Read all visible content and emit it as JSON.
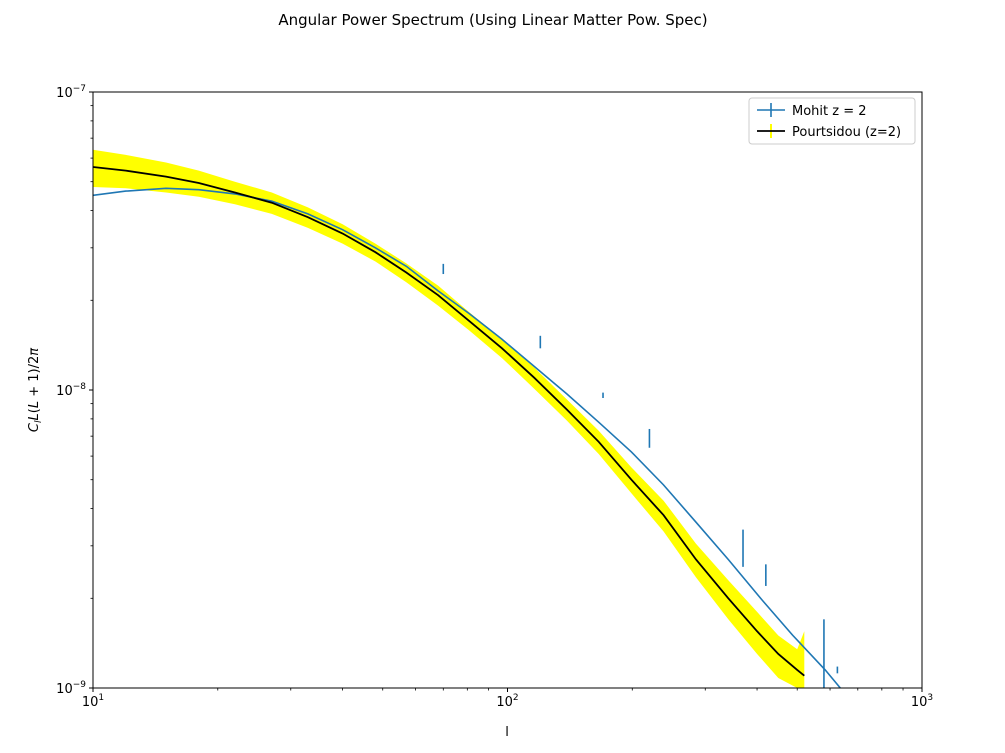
{
  "chart_data": {
    "type": "line",
    "title": "Angular Power Spectrum (Using Linear Matter Pow. Spec)",
    "xlabel": "l",
    "ylabel": "C_l L(L+1)/2π",
    "xscale": "log",
    "yscale": "log",
    "xlim": [
      10,
      1000
    ],
    "ylim": [
      1e-09,
      1e-07
    ],
    "x_ticks": [
      {
        "value": 10,
        "base": "10",
        "exp": "1"
      },
      {
        "value": 100,
        "base": "10",
        "exp": "2"
      },
      {
        "value": 1000,
        "base": "10",
        "exp": "3"
      }
    ],
    "y_ticks": [
      {
        "value": 1e-09,
        "base": "10",
        "exp": "−9"
      },
      {
        "value": 1e-08,
        "base": "10",
        "exp": "−8"
      },
      {
        "value": 1e-07,
        "base": "10",
        "exp": "−7"
      }
    ],
    "legend_position": "upper right",
    "series": [
      {
        "name": "Mohit z = 2",
        "color": "#1f77b4",
        "style": "line with error bars",
        "x": [
          10,
          12,
          15,
          18,
          22,
          27,
          33,
          40,
          48,
          57,
          68,
          81,
          97,
          116,
          139,
          166,
          199,
          238,
          285,
          341,
          408,
          488,
          584,
          700
        ],
        "y": [
          4.5e-08,
          4.65e-08,
          4.75e-08,
          4.7e-08,
          4.55e-08,
          4.3e-08,
          3.9e-08,
          3.45e-08,
          3e-08,
          2.6e-08,
          2.15e-08,
          1.8e-08,
          1.48e-08,
          1.2e-08,
          9.7e-09,
          7.8e-09,
          6.2e-09,
          4.8e-09,
          3.6e-09,
          2.7e-09,
          2e-09,
          1.5e-09,
          1.15e-09,
          8.5e-10
        ],
        "error_bars": [
          {
            "x": 70,
            "y": 2.55e-08,
            "lo": 2.45e-08,
            "hi": 2.65e-08
          },
          {
            "x": 120,
            "y": 1.45e-08,
            "lo": 1.38e-08,
            "hi": 1.52e-08
          },
          {
            "x": 170,
            "y": 9.6e-09,
            "lo": 9.4e-09,
            "hi": 9.8e-09
          },
          {
            "x": 220,
            "y": 6.9e-09,
            "lo": 6.4e-09,
            "hi": 7.4e-09
          },
          {
            "x": 370,
            "y": 2.95e-09,
            "lo": 2.55e-09,
            "hi": 3.4e-09
          },
          {
            "x": 420,
            "y": 2.4e-09,
            "lo": 2.2e-09,
            "hi": 2.6e-09
          },
          {
            "x": 580,
            "y": 1.3e-09,
            "lo": 1e-09,
            "hi": 1.7e-09
          },
          {
            "x": 625,
            "y": 1.15e-09,
            "lo": 1.12e-09,
            "hi": 1.18e-09
          }
        ]
      },
      {
        "name": "Pourtsidou (z=2)",
        "color": "#000000",
        "error_color": "#ffff00",
        "style": "line with error band",
        "x": [
          10,
          12,
          15,
          18,
          22,
          27,
          33,
          40,
          48,
          57,
          68,
          81,
          97,
          116,
          139,
          166,
          199,
          238,
          285,
          341,
          400,
          450,
          500,
          520
        ],
        "y": [
          5.6e-08,
          5.45e-08,
          5.2e-08,
          4.95e-08,
          4.6e-08,
          4.25e-08,
          3.8e-08,
          3.35e-08,
          2.9e-08,
          2.48e-08,
          2.08e-08,
          1.7e-08,
          1.38e-08,
          1.1e-08,
          8.6e-09,
          6.7e-09,
          5e-09,
          3.8e-09,
          2.7e-09,
          2e-09,
          1.55e-09,
          1.3e-09,
          1.15e-09,
          1.1e-09
        ],
        "y_lo": [
          4.8e-08,
          4.75e-08,
          4.6e-08,
          4.45e-08,
          4.2e-08,
          3.9e-08,
          3.5e-08,
          3.1e-08,
          2.7e-08,
          2.3e-08,
          1.92e-08,
          1.58e-08,
          1.28e-08,
          1.01e-08,
          7.9e-09,
          6.1e-09,
          4.5e-09,
          3.35e-09,
          2.35e-09,
          1.7e-09,
          1.3e-09,
          1.08e-09,
          1e-09,
          1e-09
        ],
        "y_hi": [
          6.4e-08,
          6.15e-08,
          5.8e-08,
          5.45e-08,
          5e-08,
          4.6e-08,
          4.1e-08,
          3.6e-08,
          3.1e-08,
          2.66e-08,
          2.24e-08,
          1.82e-08,
          1.48e-08,
          1.19e-08,
          9.3e-09,
          7.3e-09,
          5.5e-09,
          4.25e-09,
          3.05e-09,
          2.3e-09,
          1.8e-09,
          1.5e-09,
          1.35e-09,
          1.55e-09
        ]
      }
    ]
  }
}
